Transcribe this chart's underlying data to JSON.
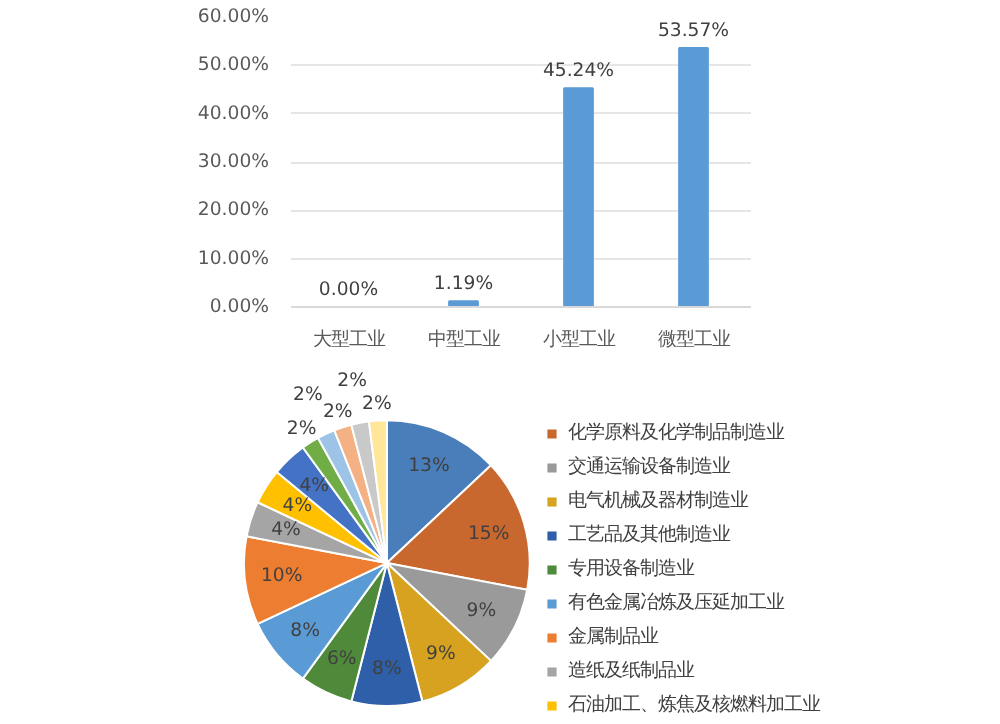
{
  "chart_data": [
    {
      "type": "bar",
      "categories": [
        "大型工业",
        "中型工业",
        "小型工业",
        "微型工业"
      ],
      "values": [
        0,
        1.19,
        45.24,
        53.57
      ],
      "color": "#5b9bd5",
      "value_labels": [
        "0.00%",
        "1.19%",
        "45.24%",
        "53.57%"
      ],
      "ylim": [
        0,
        60
      ],
      "yticks": [
        {
          "value": 0,
          "label": "0.00%"
        },
        {
          "value": 10,
          "label": "10.00%"
        },
        {
          "value": 20,
          "label": "20.00%"
        },
        {
          "value": 30,
          "label": "30.00%"
        },
        {
          "value": 40,
          "label": "40.00%"
        },
        {
          "value": 50,
          "label": "50.00%"
        },
        {
          "value": 60,
          "label": "60.00%"
        }
      ],
      "grid": "y"
    },
    {
      "type": "pie",
      "categories": [
        null,
        "化学原料及化学制品制造业",
        "交通运输设备制造业",
        "电气机械及器材制造业",
        "工艺品及其他制造业",
        "专用设备制造业",
        "有色金属冶炼及压延加工业",
        "金属制品业",
        "造纸及纸制品业",
        "石油加工、炼焦及核燃料加工业",
        null,
        null,
        null,
        null,
        null,
        null
      ],
      "values": [
        13,
        15,
        9,
        9,
        8,
        6,
        8,
        10,
        4,
        4,
        4,
        2,
        2,
        2,
        2,
        2
      ],
      "colors": [
        "#4a7ebb",
        "#c8682e",
        "#9a9a9a",
        "#d6a21f",
        "#2f5fa8",
        "#4e8a3a",
        "#5b9bd5",
        "#ed7d31",
        "#a5a5a5",
        "#ffc000",
        "#4472c4",
        "#70ad47",
        "#9dc3e6",
        "#f4b183",
        "#c9c9c9",
        "#ffe699"
      ],
      "value_labels": [
        "13%",
        "15%",
        "9%",
        "9%",
        "8%",
        "6%",
        "8%",
        "10%",
        "4%",
        "4%",
        "4%",
        "2%",
        "2%",
        "2%",
        "2%",
        "2%"
      ],
      "legend": "right"
    }
  ]
}
